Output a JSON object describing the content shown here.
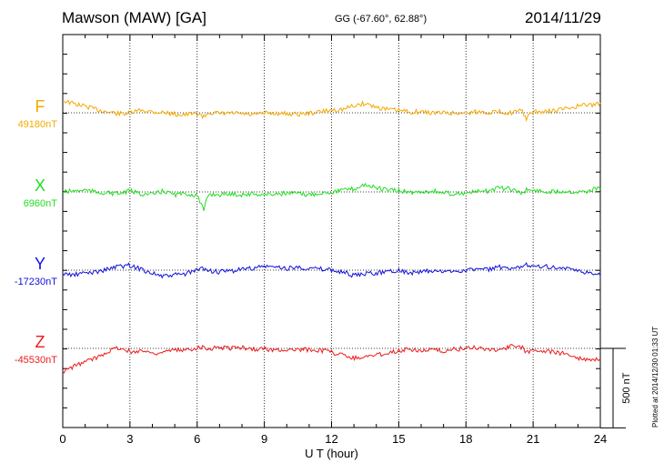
{
  "header": {
    "title": "Mawson (MAW)  [GA]",
    "coords": "GG (-67.60°,  62.88°)",
    "date": "2014/11/29"
  },
  "footer": {
    "plotted": "Plotted at 2014/12/30 01:33 UT"
  },
  "chart_data": {
    "type": "line",
    "xlabel": "U T (hour)",
    "xlim": [
      0,
      24
    ],
    "xticks": [
      "0",
      "3",
      "6",
      "9",
      "12",
      "15",
      "18",
      "21",
      "24"
    ],
    "grid": true,
    "scale_bar": {
      "label": "500 nT",
      "value_nT": 500
    },
    "colors": {
      "F": "#f5a800",
      "X": "#22dd22",
      "Y": "#1010dd",
      "Z": "#ee1a1a"
    },
    "x": [
      0,
      0.5,
      1,
      1.5,
      2,
      2.5,
      3,
      3.5,
      4,
      4.5,
      5,
      5.5,
      6,
      6.3,
      6.5,
      7,
      7.5,
      8,
      8.5,
      9,
      9.5,
      10,
      10.5,
      11,
      11.5,
      12,
      12.5,
      13,
      13.5,
      14,
      14.5,
      15,
      15.5,
      16,
      16.5,
      17,
      17.5,
      18,
      18.5,
      19,
      19.5,
      20,
      20.5,
      20.7,
      21,
      21.5,
      22,
      22.5,
      23,
      23.5,
      24
    ],
    "series": [
      {
        "name": "F",
        "baseline_label": "49180nT",
        "values": [
          130,
          95,
          70,
          35,
          10,
          -10,
          -5,
          30,
          10,
          5,
          -15,
          -20,
          -5,
          -45,
          5,
          -10,
          -5,
          -10,
          -25,
          -5,
          -5,
          -10,
          -15,
          -5,
          10,
          30,
          35,
          75,
          100,
          60,
          35,
          25,
          10,
          10,
          0,
          0,
          -5,
          0,
          10,
          5,
          10,
          0,
          20,
          -60,
          10,
          10,
          25,
          45,
          70,
          85,
          90
        ]
      },
      {
        "name": "X",
        "baseline_label": "6960nT",
        "values": [
          0,
          10,
          20,
          -5,
          -10,
          -20,
          10,
          -20,
          -30,
          10,
          -30,
          -20,
          -35,
          -200,
          -20,
          -30,
          -20,
          -30,
          -20,
          -30,
          -20,
          -15,
          -20,
          -30,
          -10,
          0,
          20,
          30,
          80,
          40,
          20,
          10,
          -5,
          0,
          10,
          -10,
          -20,
          -10,
          0,
          10,
          40,
          30,
          -10,
          20,
          20,
          0,
          5,
          10,
          0,
          10,
          50
        ]
      },
      {
        "name": "Y",
        "baseline_label": "-17230nT",
        "values": [
          -40,
          -50,
          -30,
          -20,
          10,
          40,
          50,
          10,
          -30,
          -70,
          -50,
          -40,
          0,
          20,
          -5,
          -20,
          -10,
          10,
          20,
          40,
          30,
          20,
          30,
          20,
          10,
          0,
          -20,
          -60,
          -40,
          -30,
          -10,
          0,
          -30,
          -20,
          -10,
          -20,
          -10,
          0,
          10,
          10,
          30,
          0,
          40,
          60,
          50,
          40,
          30,
          10,
          -10,
          -30,
          -50
        ]
      },
      {
        "name": "Z",
        "baseline_label": "-45530nT",
        "values": [
          -250,
          -190,
          -140,
          -100,
          -30,
          10,
          -40,
          -20,
          -50,
          -40,
          -20,
          -20,
          10,
          20,
          -5,
          10,
          5,
          10,
          -10,
          -5,
          -20,
          -10,
          -20,
          -10,
          -20,
          -40,
          -70,
          -100,
          -90,
          -70,
          -50,
          -20,
          -10,
          -20,
          -20,
          -30,
          -10,
          0,
          10,
          -10,
          -10,
          20,
          10,
          -40,
          -10,
          -30,
          -40,
          -60,
          -100,
          -120,
          -110
        ]
      }
    ]
  }
}
